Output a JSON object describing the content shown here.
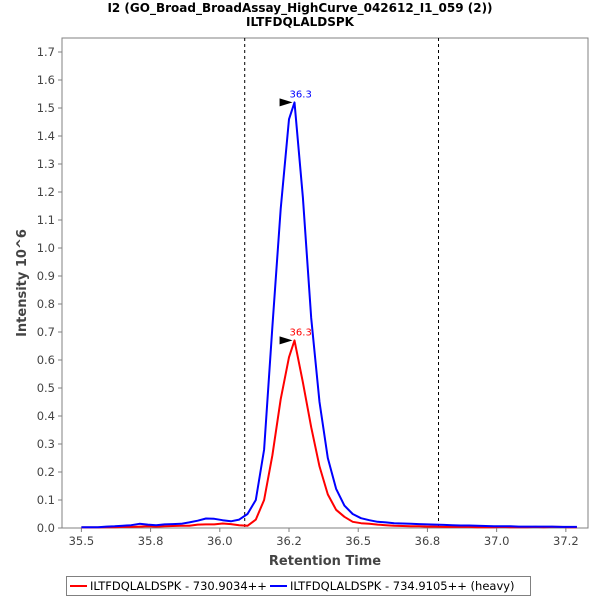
{
  "chart_data": {
    "type": "line",
    "title": "I2 (GO_Broad_BroadAssay_HighCurve_042612_I1_059 (2))",
    "subtitle": "ILTFDQLALDSPK",
    "xlabel": "Retention Time",
    "ylabel": "Intensity 10^6",
    "xlim": [
      35.43,
      37.33
    ],
    "ylim": [
      0.0,
      1.75
    ],
    "xticks": [
      "35.5",
      "35.8",
      "36.0",
      "36.2",
      "36.5",
      "36.8",
      "37.0",
      "37.2"
    ],
    "xtick_values": [
      35.5,
      35.75,
      36.0,
      36.25,
      36.5,
      36.75,
      37.0,
      37.25
    ],
    "yticks": [
      "0.0",
      "0.1",
      "0.2",
      "0.3",
      "0.4",
      "0.5",
      "0.6",
      "0.7",
      "0.8",
      "0.9",
      "1.0",
      "1.1",
      "1.2",
      "1.3",
      "1.4",
      "1.5",
      "1.6",
      "1.7"
    ],
    "vlines": [
      36.09,
      36.79
    ],
    "grid": false,
    "legend_position": "bottom",
    "series": [
      {
        "name": "ILTFDQLALDSPK - 730.9034++",
        "color": "#ff0000",
        "peak_label": "36.3",
        "peak": [
          36.27,
          0.67
        ],
        "x": [
          35.5,
          35.53,
          35.56,
          35.59,
          35.62,
          35.65,
          35.68,
          35.71,
          35.74,
          35.77,
          35.8,
          35.83,
          35.86,
          35.89,
          35.92,
          35.95,
          35.98,
          36.01,
          36.04,
          36.07,
          36.1,
          36.13,
          36.16,
          36.19,
          36.22,
          36.25,
          36.27,
          36.3,
          36.33,
          36.36,
          36.39,
          36.42,
          36.45,
          36.48,
          36.51,
          36.54,
          36.57,
          36.6,
          36.63,
          36.66,
          36.69,
          36.72,
          36.75,
          36.78,
          36.81,
          36.84,
          36.87,
          36.9,
          36.93,
          36.96,
          36.99,
          37.02,
          37.05,
          37.08,
          37.11,
          37.14,
          37.17,
          37.2,
          37.23,
          37.26,
          37.29
        ],
        "y": [
          0.002,
          0.002,
          0.002,
          0.003,
          0.003,
          0.004,
          0.004,
          0.005,
          0.006,
          0.005,
          0.006,
          0.007,
          0.008,
          0.008,
          0.012,
          0.013,
          0.013,
          0.016,
          0.014,
          0.01,
          0.008,
          0.03,
          0.1,
          0.26,
          0.46,
          0.61,
          0.67,
          0.52,
          0.36,
          0.22,
          0.12,
          0.065,
          0.04,
          0.022,
          0.017,
          0.015,
          0.012,
          0.01,
          0.008,
          0.007,
          0.006,
          0.006,
          0.005,
          0.005,
          0.004,
          0.004,
          0.004,
          0.004,
          0.003,
          0.003,
          0.003,
          0.004,
          0.003,
          0.003,
          0.003,
          0.004,
          0.003,
          0.004,
          0.004,
          0.003,
          0.003
        ]
      },
      {
        "name": "ILTFDQLALDSPK - 734.9105++ (heavy)",
        "color": "#0000ff",
        "peak_label": "36.3",
        "peak": [
          36.27,
          1.52
        ],
        "x": [
          35.5,
          35.53,
          35.56,
          35.59,
          35.62,
          35.65,
          35.68,
          35.71,
          35.74,
          35.77,
          35.8,
          35.83,
          35.86,
          35.89,
          35.92,
          35.95,
          35.98,
          36.01,
          36.04,
          36.07,
          36.1,
          36.13,
          36.16,
          36.19,
          36.22,
          36.25,
          36.27,
          36.3,
          36.33,
          36.36,
          36.39,
          36.42,
          36.45,
          36.48,
          36.51,
          36.54,
          36.57,
          36.6,
          36.63,
          36.66,
          36.69,
          36.72,
          36.75,
          36.78,
          36.81,
          36.84,
          36.87,
          36.9,
          36.93,
          36.96,
          36.99,
          37.02,
          37.05,
          37.08,
          37.11,
          37.14,
          37.17,
          37.2,
          37.23,
          37.26,
          37.29
        ],
        "y": [
          0.003,
          0.003,
          0.003,
          0.005,
          0.006,
          0.008,
          0.01,
          0.015,
          0.012,
          0.01,
          0.013,
          0.014,
          0.015,
          0.02,
          0.026,
          0.034,
          0.033,
          0.028,
          0.024,
          0.03,
          0.05,
          0.1,
          0.28,
          0.72,
          1.14,
          1.46,
          1.52,
          1.18,
          0.75,
          0.45,
          0.25,
          0.14,
          0.08,
          0.05,
          0.035,
          0.028,
          0.022,
          0.02,
          0.017,
          0.016,
          0.015,
          0.014,
          0.013,
          0.012,
          0.011,
          0.01,
          0.009,
          0.009,
          0.008,
          0.007,
          0.006,
          0.006,
          0.006,
          0.005,
          0.005,
          0.005,
          0.005,
          0.005,
          0.004,
          0.004,
          0.004
        ]
      }
    ]
  }
}
